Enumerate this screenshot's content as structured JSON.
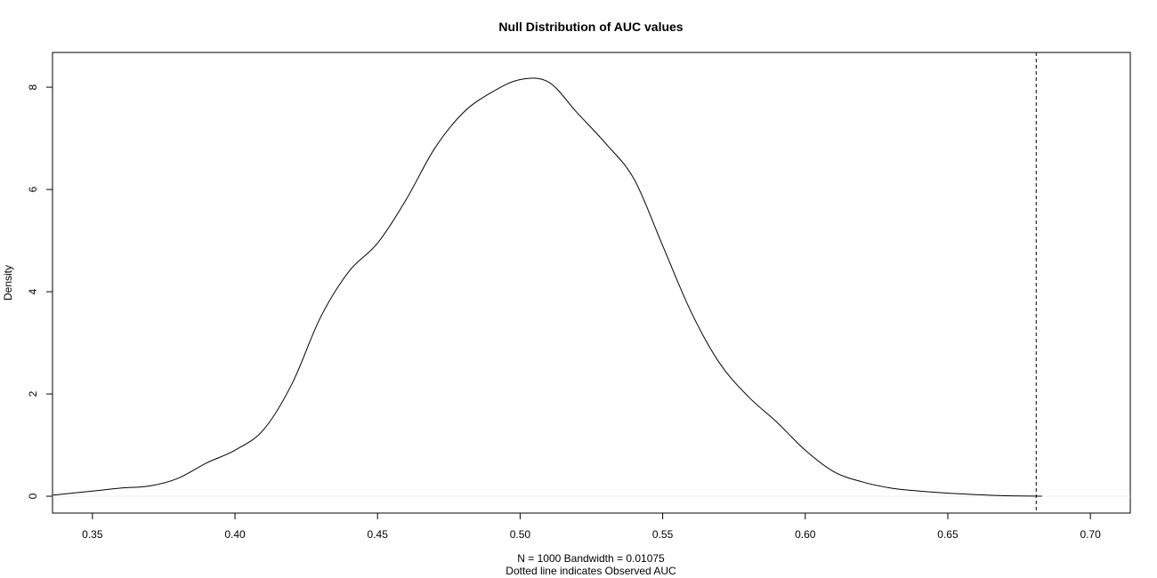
{
  "chart_data": {
    "type": "line",
    "title": "Null Distribution of AUC values",
    "xlabel_line1": "N = 1000   Bandwidth = 0.01075",
    "xlabel_line2": "Dotted line indicates Observed AUC",
    "ylabel": "Density",
    "xlim": [
      0.336,
      0.714
    ],
    "ylim": [
      -0.33,
      8.68
    ],
    "x_ticks": [
      0.35,
      0.4,
      0.45,
      0.5,
      0.55,
      0.6,
      0.65,
      0.7
    ],
    "x_tick_labels": [
      "0.35",
      "0.40",
      "0.45",
      "0.50",
      "0.55",
      "0.60",
      "0.65",
      "0.70"
    ],
    "y_ticks": [
      0,
      2,
      4,
      6,
      8
    ],
    "y_tick_labels": [
      "0",
      "2",
      "4",
      "6",
      "8"
    ],
    "grid": false,
    "observed_auc": 0.681,
    "series": [
      {
        "x": [
          0.336,
          0.35,
          0.36,
          0.37,
          0.38,
          0.39,
          0.4,
          0.41,
          0.42,
          0.43,
          0.44,
          0.45,
          0.46,
          0.47,
          0.48,
          0.49,
          0.5,
          0.51,
          0.52,
          0.53,
          0.54,
          0.55,
          0.56,
          0.57,
          0.58,
          0.59,
          0.6,
          0.61,
          0.62,
          0.63,
          0.64,
          0.65,
          0.66,
          0.67,
          0.683
        ],
        "y": [
          0.02,
          0.1,
          0.16,
          0.2,
          0.35,
          0.65,
          0.9,
          1.3,
          2.2,
          3.5,
          4.4,
          4.95,
          5.8,
          6.8,
          7.5,
          7.9,
          8.15,
          8.1,
          7.5,
          6.9,
          6.2,
          4.9,
          3.6,
          2.6,
          1.95,
          1.45,
          0.9,
          0.48,
          0.28,
          0.16,
          0.1,
          0.06,
          0.03,
          0.01,
          0.0
        ]
      }
    ]
  }
}
